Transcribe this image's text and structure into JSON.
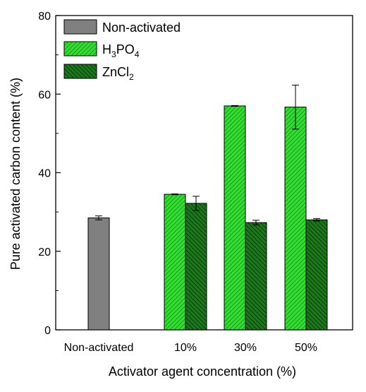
{
  "chart_data": {
    "type": "bar",
    "xlabel": "Activator agent concentration (%)",
    "ylabel": "Pure activated carbon content (%)",
    "ylim": [
      0,
      80
    ],
    "yticks": [
      0,
      20,
      40,
      60,
      80
    ],
    "categories": [
      "Non-activated",
      "10%",
      "30%",
      "50%"
    ],
    "grid": false,
    "legend_position": "top-left",
    "series": [
      {
        "name": "Non-activated",
        "legend_main": "Non-activated",
        "legend_sub": "",
        "legend_tail": "",
        "color": "#808080",
        "pattern": "solid",
        "values": [
          28.5,
          null,
          null,
          null
        ],
        "errors": [
          0.5,
          null,
          null,
          null
        ]
      },
      {
        "name": "H3PO4",
        "legend_main": "H",
        "legend_sub": "3",
        "legend_tail": "PO",
        "legend_sub2": "4",
        "color": "#33dd33",
        "pattern": "diag-right",
        "values": [
          null,
          34.5,
          57.0,
          56.7
        ],
        "errors": [
          null,
          0.1,
          0.1,
          5.6
        ]
      },
      {
        "name": "ZnCl2",
        "legend_main": "ZnCl",
        "legend_sub": "2",
        "legend_tail": "",
        "color": "#1a7a1a",
        "pattern": "diag-left",
        "values": [
          null,
          32.2,
          27.3,
          28.0
        ],
        "errors": [
          null,
          1.8,
          0.6,
          0.3
        ]
      }
    ]
  }
}
